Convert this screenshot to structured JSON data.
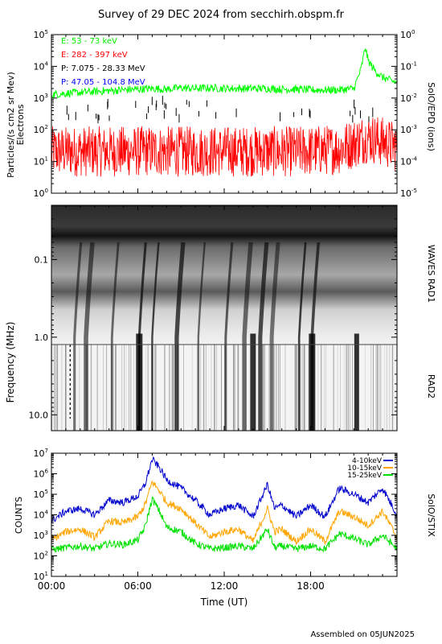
{
  "title": "Survey of 29 DEC 2024 from secchirh.obspm.fr",
  "footer": "Assembled on 05JUN2025",
  "chart_data": [
    {
      "type": "line",
      "panel": "SolO/EPD",
      "ylabel": "Particles/(s cm2 sr Mev) Electrons",
      "ylabel_line1": "Particles/(s cm2 sr Mev)",
      "ylabel_line2": "Electrons",
      "right_label": "SolO/EPD (ions)",
      "yscale": "log",
      "ylim": [
        1,
        100000
      ],
      "yticks": [
        "10^0",
        "10^1",
        "10^2",
        "10^3",
        "10^4",
        "10^5"
      ],
      "right_ylim": [
        1e-05,
        1
      ],
      "right_yticks": [
        "10^-5",
        "10^-4",
        "10^-3",
        "10^-2",
        "10^-1",
        "10^0"
      ],
      "xlim_hours": [
        0,
        24
      ],
      "legend_position": "top-left",
      "series": [
        {
          "name": "E: 53 - 73 keV",
          "color": "#00ff00",
          "x_hours": [
            0,
            1,
            2,
            3,
            4,
            5,
            6,
            7,
            8,
            9,
            10,
            11,
            12,
            13,
            14,
            15,
            16,
            17,
            18,
            19,
            20,
            21,
            21.5,
            21.8,
            22,
            22.5,
            23,
            24
          ],
          "values": [
            1300,
            1400,
            1500,
            1600,
            1700,
            1800,
            1900,
            2000,
            1900,
            2100,
            2000,
            2100,
            2000,
            2000,
            2000,
            2000,
            1900,
            1900,
            1800,
            1800,
            1800,
            2000,
            8000,
            40000,
            15000,
            7000,
            4500,
            3000
          ]
        },
        {
          "name": "E: 282 - 397 keV",
          "color": "#ff0000",
          "x_hours": [
            0,
            1,
            2,
            3,
            4,
            5,
            6,
            7,
            8,
            9,
            10,
            11,
            12,
            13,
            14,
            15,
            16,
            17,
            18,
            19,
            20,
            21,
            22,
            23,
            24
          ],
          "values": [
            25,
            25,
            25,
            25,
            25,
            25,
            25,
            26,
            25,
            25,
            25,
            25,
            25,
            25,
            25,
            25,
            25,
            25,
            26,
            28,
            30,
            45,
            70,
            50,
            35
          ]
        },
        {
          "name": "P: 7.075 - 28.33 MeV",
          "color": "#000000",
          "values": []
        },
        {
          "name": "P: 47.05 - 104.8 MeV",
          "color": "#0000ff",
          "values": []
        }
      ]
    },
    {
      "type": "heatmap",
      "panel": "WAVES RAD1 / RAD2",
      "ylabel": "Frequency (MHz)",
      "yscale": "log",
      "y_inverted": true,
      "ylim_mhz": [
        0.02,
        16
      ],
      "yticks": [
        "0.1",
        "1.0",
        "10.0"
      ],
      "right_labels": [
        "WAVES RAD1",
        "RAD2"
      ],
      "xlim_hours": [
        0,
        24
      ],
      "colormap": "grayscale"
    },
    {
      "type": "line",
      "panel": "SolO/STIX",
      "ylabel": "COUNTS",
      "right_label": "SolO/STIX",
      "yscale": "log",
      "ylim": [
        10,
        10000000
      ],
      "yticks": [
        "10^1",
        "10^2",
        "10^3",
        "10^4",
        "10^5",
        "10^6",
        "10^7"
      ],
      "xlim_hours": [
        0,
        24
      ],
      "xticks": [
        "00:00",
        "06:00",
        "12:00",
        "18:00"
      ],
      "xlabel": "Time (UT)",
      "legend_position": "top-right",
      "series": [
        {
          "name": "4-10keV",
          "color": "#0000cc",
          "x_hours": [
            0,
            1,
            2,
            3,
            4,
            5,
            6,
            6.5,
            7,
            7.5,
            8,
            9,
            10,
            11,
            12,
            13,
            14,
            15,
            15.5,
            16,
            17,
            18,
            19,
            20,
            21,
            22,
            23,
            24
          ],
          "values": [
            5000,
            15000,
            20000,
            10000,
            50000,
            40000,
            80000,
            300000,
            5000000,
            2000000,
            500000,
            200000,
            50000,
            10000,
            20000,
            30000,
            8000,
            300000,
            20000,
            30000,
            8000,
            30000,
            8000,
            200000,
            100000,
            40000,
            200000,
            10000
          ]
        },
        {
          "name": "10-15keV",
          "color": "#ffa500",
          "x_hours": [
            0,
            1,
            2,
            3,
            4,
            5,
            6,
            6.5,
            7,
            7.5,
            8,
            9,
            10,
            11,
            12,
            13,
            14,
            15,
            15.5,
            16,
            17,
            18,
            19,
            20,
            21,
            22,
            23,
            24
          ],
          "values": [
            600,
            1500,
            2000,
            800,
            5000,
            4000,
            8000,
            30000,
            400000,
            150000,
            40000,
            20000,
            4000,
            800,
            1500,
            2000,
            500,
            20000,
            1500,
            2000,
            500,
            2000,
            500,
            15000,
            8000,
            3000,
            15000,
            800
          ]
        },
        {
          "name": "15-25keV",
          "color": "#00e000",
          "x_hours": [
            0,
            1,
            2,
            3,
            4,
            5,
            6,
            6.5,
            7,
            7.5,
            8,
            9,
            10,
            11,
            12,
            13,
            14,
            15,
            15.5,
            16,
            17,
            18,
            19,
            20,
            21,
            22,
            23,
            24
          ],
          "values": [
            200,
            250,
            300,
            220,
            400,
            350,
            600,
            2500,
            60000,
            15000,
            2500,
            1500,
            400,
            220,
            250,
            300,
            220,
            2000,
            250,
            300,
            220,
            300,
            220,
            1200,
            700,
            350,
            1000,
            220
          ]
        }
      ]
    }
  ]
}
